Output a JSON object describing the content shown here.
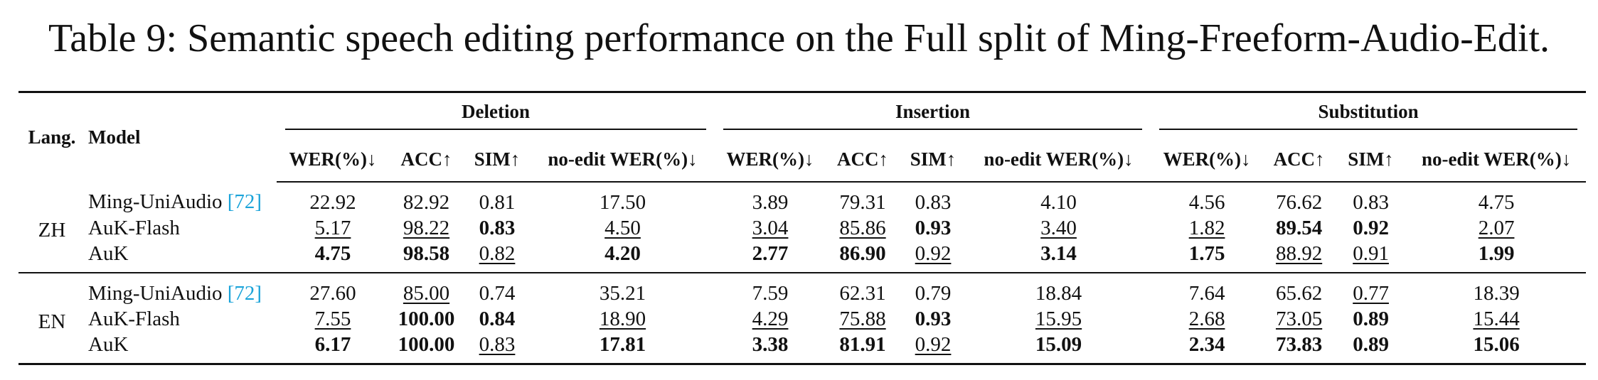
{
  "title": "Table 9: Semantic speech editing performance on the Full split of Ming-Freeform-Audio-Edit.",
  "header": {
    "lang": "Lang.",
    "model": "Model",
    "groups": [
      {
        "name": "Deletion",
        "columns": [
          "WER(%)↓",
          "ACC↑",
          "SIM↑",
          "no-edit WER(%)↓"
        ]
      },
      {
        "name": "Insertion",
        "columns": [
          "WER(%)↓",
          "ACC↑",
          "SIM↑",
          "no-edit WER(%)↓"
        ]
      },
      {
        "name": "Substitution",
        "columns": [
          "WER(%)↓",
          "ACC↑",
          "SIM↑",
          "no-edit WER(%)↓"
        ]
      }
    ]
  },
  "blocks": [
    {
      "lang": "ZH",
      "rows": [
        {
          "model": "Ming-UniAudio",
          "cite": "[72]",
          "cells": [
            {
              "text": "22.92",
              "style": "plain"
            },
            {
              "text": "82.92",
              "style": "plain"
            },
            {
              "text": "0.81",
              "style": "plain"
            },
            {
              "text": "17.50",
              "style": "plain"
            },
            {
              "text": "3.89",
              "style": "plain"
            },
            {
              "text": "79.31",
              "style": "plain"
            },
            {
              "text": "0.83",
              "style": "plain"
            },
            {
              "text": "4.10",
              "style": "plain"
            },
            {
              "text": "4.56",
              "style": "plain"
            },
            {
              "text": "76.62",
              "style": "plain"
            },
            {
              "text": "0.83",
              "style": "plain"
            },
            {
              "text": "4.75",
              "style": "plain"
            }
          ]
        },
        {
          "model": "AuK-Flash",
          "cells": [
            {
              "text": "5.17",
              "style": "underline"
            },
            {
              "text": "98.22",
              "style": "underline"
            },
            {
              "text": "0.83",
              "style": "bold"
            },
            {
              "text": "4.50",
              "style": "underline"
            },
            {
              "text": "3.04",
              "style": "underline"
            },
            {
              "text": "85.86",
              "style": "underline"
            },
            {
              "text": "0.93",
              "style": "bold"
            },
            {
              "text": "3.40",
              "style": "underline"
            },
            {
              "text": "1.82",
              "style": "underline"
            },
            {
              "text": "89.54",
              "style": "bold"
            },
            {
              "text": "0.92",
              "style": "bold"
            },
            {
              "text": "2.07",
              "style": "underline"
            }
          ]
        },
        {
          "model": "AuK",
          "cells": [
            {
              "text": "4.75",
              "style": "bold"
            },
            {
              "text": "98.58",
              "style": "bold"
            },
            {
              "text": "0.82",
              "style": "underline"
            },
            {
              "text": "4.20",
              "style": "bold"
            },
            {
              "text": "2.77",
              "style": "bold"
            },
            {
              "text": "86.90",
              "style": "bold"
            },
            {
              "text": "0.92",
              "style": "underline"
            },
            {
              "text": "3.14",
              "style": "bold"
            },
            {
              "text": "1.75",
              "style": "bold"
            },
            {
              "text": "88.92",
              "style": "underline"
            },
            {
              "text": "0.91",
              "style": "underline"
            },
            {
              "text": "1.99",
              "style": "bold"
            }
          ]
        }
      ]
    },
    {
      "lang": "EN",
      "rows": [
        {
          "model": "Ming-UniAudio",
          "cite": "[72]",
          "cells": [
            {
              "text": "27.60",
              "style": "plain"
            },
            {
              "text": "85.00",
              "style": "underline"
            },
            {
              "text": "0.74",
              "style": "plain"
            },
            {
              "text": "35.21",
              "style": "plain"
            },
            {
              "text": "7.59",
              "style": "plain"
            },
            {
              "text": "62.31",
              "style": "plain"
            },
            {
              "text": "0.79",
              "style": "plain"
            },
            {
              "text": "18.84",
              "style": "plain"
            },
            {
              "text": "7.64",
              "style": "plain"
            },
            {
              "text": "65.62",
              "style": "plain"
            },
            {
              "text": "0.77",
              "style": "underline"
            },
            {
              "text": "18.39",
              "style": "plain"
            }
          ]
        },
        {
          "model": "AuK-Flash",
          "cells": [
            {
              "text": "7.55",
              "style": "underline"
            },
            {
              "text": "100.00",
              "style": "bold"
            },
            {
              "text": "0.84",
              "style": "bold"
            },
            {
              "text": "18.90",
              "style": "underline"
            },
            {
              "text": "4.29",
              "style": "underline"
            },
            {
              "text": "75.88",
              "style": "underline"
            },
            {
              "text": "0.93",
              "style": "bold"
            },
            {
              "text": "15.95",
              "style": "underline"
            },
            {
              "text": "2.68",
              "style": "underline"
            },
            {
              "text": "73.05",
              "style": "underline"
            },
            {
              "text": "0.89",
              "style": "bold"
            },
            {
              "text": "15.44",
              "style": "underline"
            }
          ]
        },
        {
          "model": "AuK",
          "cells": [
            {
              "text": "6.17",
              "style": "bold"
            },
            {
              "text": "100.00",
              "style": "bold"
            },
            {
              "text": "0.83",
              "style": "underline"
            },
            {
              "text": "17.81",
              "style": "bold"
            },
            {
              "text": "3.38",
              "style": "bold"
            },
            {
              "text": "81.91",
              "style": "bold"
            },
            {
              "text": "0.92",
              "style": "underline"
            },
            {
              "text": "15.09",
              "style": "bold"
            },
            {
              "text": "2.34",
              "style": "bold"
            },
            {
              "text": "73.83",
              "style": "bold"
            },
            {
              "text": "0.89",
              "style": "bold"
            },
            {
              "text": "15.06",
              "style": "bold"
            }
          ]
        }
      ]
    }
  ]
}
